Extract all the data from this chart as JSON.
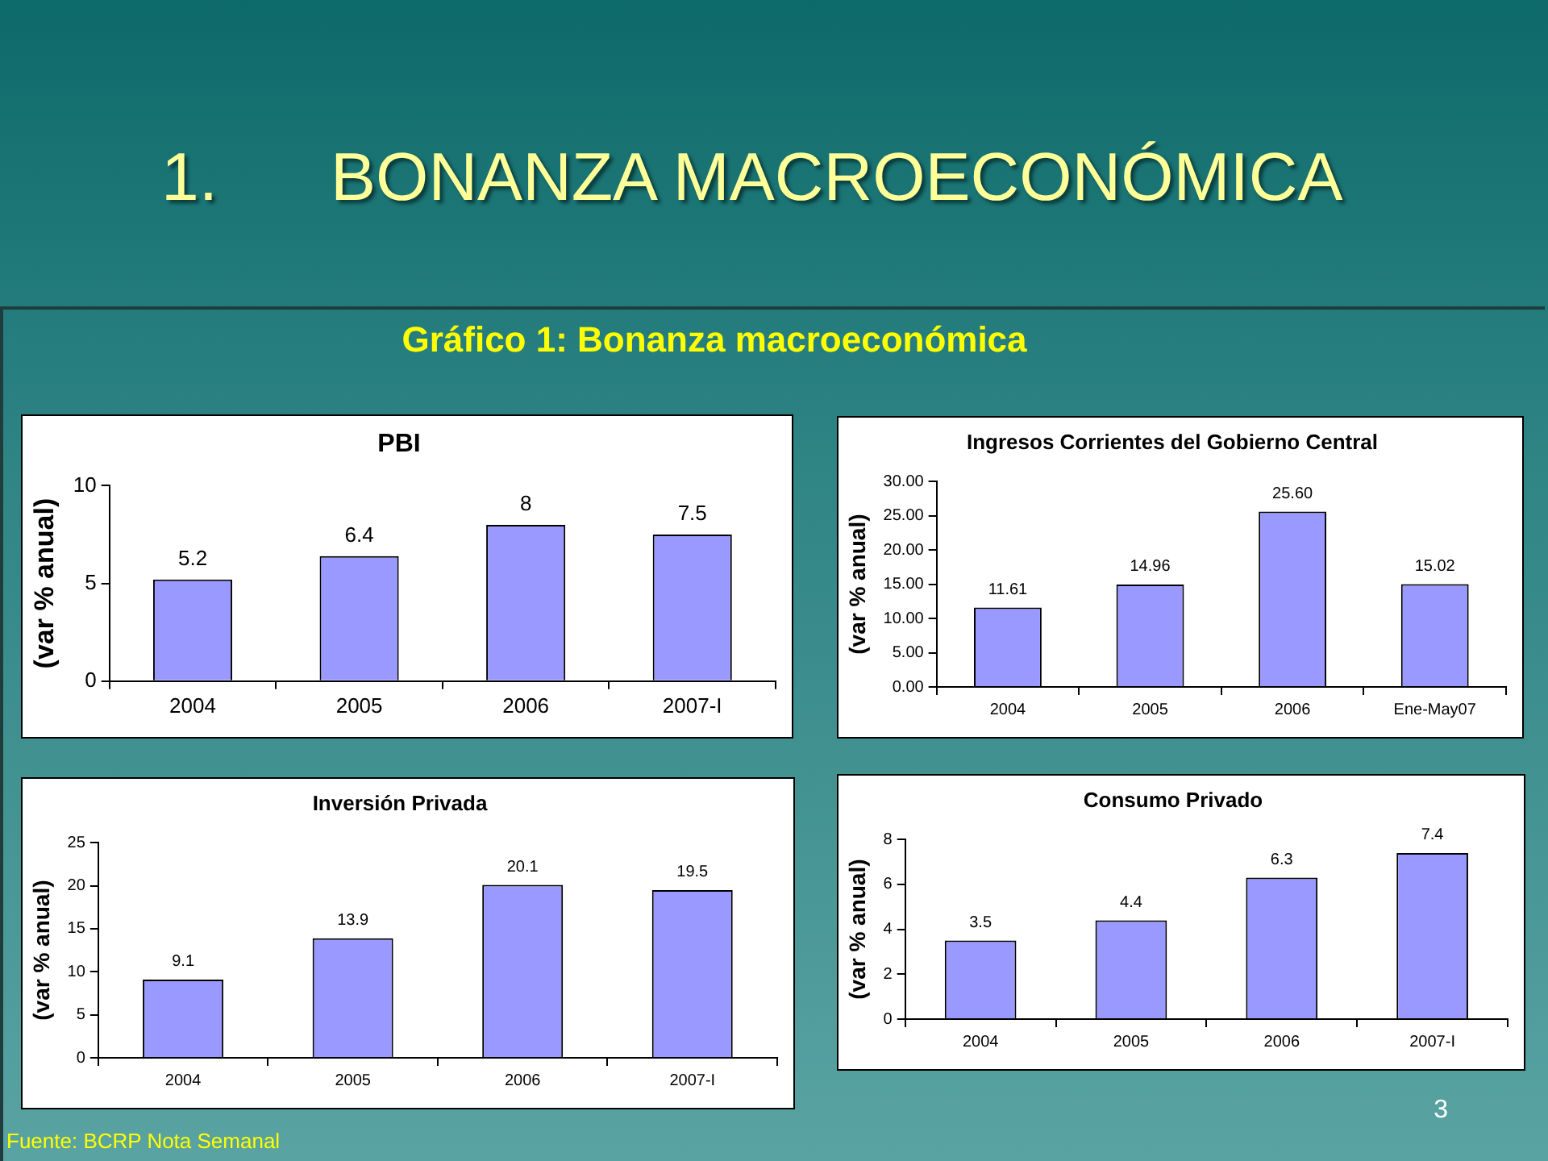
{
  "chart_data": [
    {
      "type": "other",
      "title": "1.      BONANZA MACROECONÓMICA",
      "subtitle": "Gráfico 1: Bonanza macroeconómica",
      "annotations": [
        "Fuente: BCRP Nota Semanal",
        "3"
      ]
    },
    {
      "type": "bar",
      "title": "PBI",
      "ylabel": "(var % anual)",
      "categories": [
        "2004",
        "2005",
        "2006",
        "2007-I"
      ],
      "values": [
        5.2,
        6.4,
        8,
        7.5
      ],
      "value_labels": [
        "5.2",
        "6.4",
        "8",
        "7.5"
      ],
      "color": "#9999ff",
      "ylim": [
        0,
        10
      ],
      "yticks": [
        0,
        5,
        10
      ],
      "grid": false,
      "legend": false
    },
    {
      "type": "bar",
      "title": "Ingresos Corrientes del Gobierno Central",
      "ylabel": "(var % anual)",
      "categories": [
        "2004",
        "2005",
        "2006",
        "Ene-May07"
      ],
      "values": [
        11.61,
        14.96,
        25.6,
        15.02
      ],
      "value_labels": [
        "11.61",
        "14.96",
        "25.60",
        "15.02"
      ],
      "color": "#9999ff",
      "ylim": [
        0,
        30
      ],
      "yticks": [
        {
          "value": 0,
          "label": "0.00"
        },
        {
          "value": 5,
          "label": "5.00"
        },
        {
          "value": 10,
          "label": "10.00"
        },
        {
          "value": 15,
          "label": "15.00"
        },
        {
          "value": 20,
          "label": "20.00"
        },
        {
          "value": 25,
          "label": "25.00"
        },
        {
          "value": 30,
          "label": "30.00"
        }
      ],
      "grid": false,
      "legend": false
    },
    {
      "type": "bar",
      "title": "Inversión Privada",
      "ylabel": "(var % anual)",
      "categories": [
        "2004",
        "2005",
        "2006",
        "2007-I"
      ],
      "values": [
        9.1,
        13.9,
        20.1,
        19.5
      ],
      "value_labels": [
        "9.1",
        "13.9",
        "20.1",
        "19.5"
      ],
      "color": "#9999ff",
      "ylim": [
        0,
        25
      ],
      "yticks": [
        0,
        5,
        10,
        15,
        20,
        25
      ],
      "grid": false,
      "legend": false
    },
    {
      "type": "bar",
      "title": "Consumo Privado",
      "ylabel": "(var % anual)",
      "categories": [
        "2004",
        "2005",
        "2006",
        "2007-I"
      ],
      "values": [
        3.5,
        4.4,
        6.3,
        7.4
      ],
      "value_labels": [
        "3.5",
        "4.4",
        "6.3",
        "7.4"
      ],
      "color": "#9999ff",
      "ylim": [
        0,
        8
      ],
      "yticks": [
        0,
        2,
        4,
        6,
        8
      ],
      "grid": false,
      "legend": false
    }
  ]
}
